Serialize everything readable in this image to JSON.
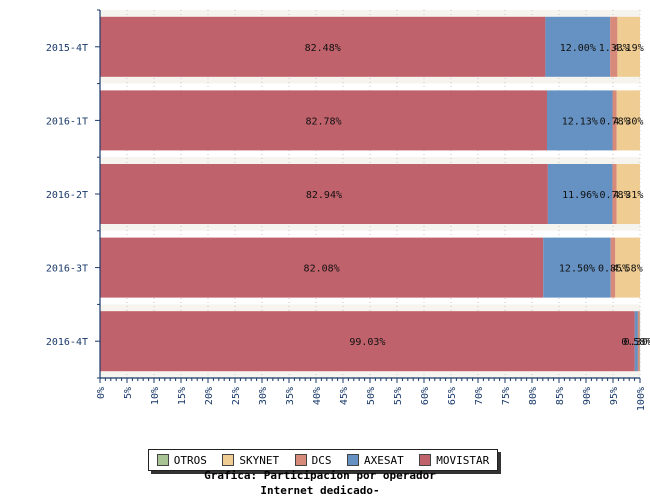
{
  "chart_data": {
    "type": "bar",
    "orientation": "horizontal",
    "stacked": true,
    "percent_stacked": true,
    "categories": [
      "2015-4T",
      "2016-1T",
      "2016-2T",
      "2016-3T",
      "2016-4T"
    ],
    "series": [
      {
        "name": "MOVISTAR",
        "color": "#c0626b",
        "values": [
          82.48,
          82.78,
          82.94,
          82.08,
          99.03
        ],
        "labels": [
          "82.48%",
          "82.78%",
          "82.94%",
          "82.08%",
          "99.03%"
        ]
      },
      {
        "name": "AXESAT",
        "color": "#6592c2",
        "values": [
          12.0,
          12.13,
          11.96,
          12.5,
          0.58
        ],
        "labels": [
          "12.00%",
          "12.13%",
          "11.96%",
          "12.50%",
          "0.58%"
        ]
      },
      {
        "name": "DCS",
        "color": "#d88a7a",
        "values": [
          1.33,
          0.78,
          0.78,
          0.85,
          0.3
        ],
        "labels": [
          "1.33%",
          "0.78%",
          "0.78%",
          "0.85%",
          "0.30%"
        ]
      },
      {
        "name": "SKYNET",
        "color": "#efcc91",
        "values": [
          4.19,
          4.3,
          4.31,
          4.58,
          0.0
        ],
        "labels": [
          "4.19%",
          "4.30%",
          "4.31%",
          "4.58%",
          ""
        ]
      },
      {
        "name": "OTROS",
        "color": "#a8c495",
        "values": [
          0.0,
          0.0,
          0.0,
          0.0,
          0.09
        ],
        "labels": [
          "",
          "",
          "",
          "",
          ""
        ]
      }
    ],
    "x_ticks": [
      "0%",
      "5%",
      "10%",
      "15%",
      "20%",
      "25%",
      "30%",
      "35%",
      "40%",
      "45%",
      "50%",
      "55%",
      "60%",
      "65%",
      "70%",
      "75%",
      "80%",
      "85%",
      "90%",
      "95%",
      "100%"
    ],
    "xlim": [
      0,
      100
    ],
    "grid": true,
    "legend_position": "bottom",
    "legend_order": [
      "OTROS",
      "SKYNET",
      "DCS",
      "AXESAT",
      "MOVISTAR"
    ],
    "title": "",
    "caption_line1": "Grafica: Participacion por operador",
    "caption_line2": "Internet dedicado-"
  }
}
